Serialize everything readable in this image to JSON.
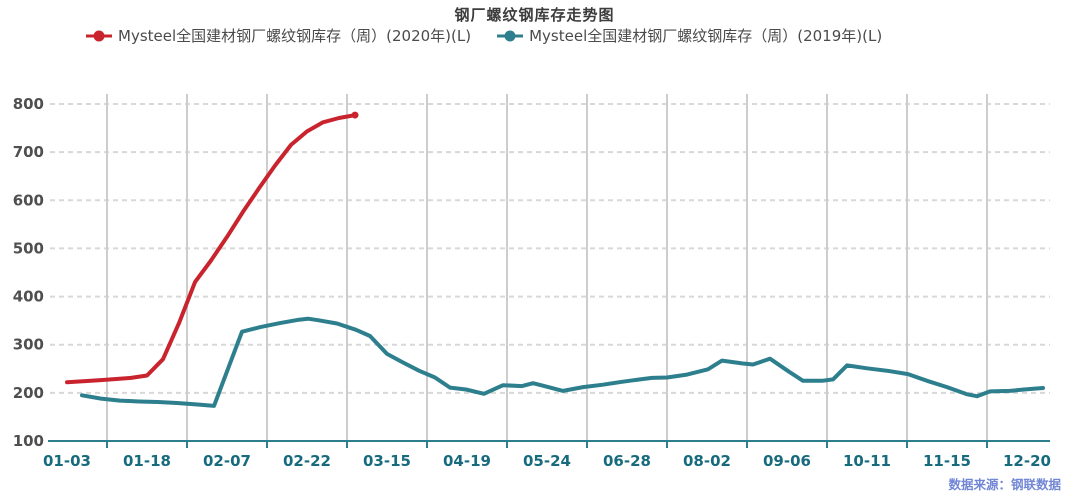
{
  "title": "钢厂螺纹钢库存走势图",
  "source_note": "数据来源：钢联数据",
  "colors": {
    "series_2020": "#c9242e",
    "series_2019": "#2e7f8e",
    "axis_line": "#2e7f8e",
    "x_label": "#176b7d",
    "y_label": "#4f4f4f",
    "grid_dashed": "#d8d8d8",
    "grid_solid": "#cdcdcd",
    "title_text": "#3c3c3c",
    "source_text": "#7287d5"
  },
  "chart_data": {
    "type": "line",
    "title": "钢厂螺纹钢库存走势图",
    "xlabel": "",
    "ylabel": "",
    "ylim": [
      100,
      800
    ],
    "y_ticks": [
      100,
      200,
      300,
      400,
      500,
      600,
      700,
      800
    ],
    "x_tick_labels": [
      "01-03",
      "01-18",
      "02-07",
      "02-22",
      "03-15",
      "04-19",
      "05-24",
      "06-28",
      "08-02",
      "09-06",
      "10-11",
      "11-15",
      "12-20"
    ],
    "grid": "on",
    "legend_position": "top",
    "series": [
      {
        "name": "Mysteel全国建材钢厂螺纹钢库存（周）(2020年)(L)",
        "color": "#c9242e",
        "end_marker": true,
        "points": [
          [
            67,
            222
          ],
          [
            99,
            226
          ],
          [
            131,
            231
          ],
          [
            147,
            236
          ],
          [
            163,
            270
          ],
          [
            179,
            345
          ],
          [
            195,
            430
          ],
          [
            211,
            475
          ],
          [
            227,
            524
          ],
          [
            243,
            576
          ],
          [
            259,
            625
          ],
          [
            275,
            672
          ],
          [
            291,
            715
          ],
          [
            307,
            743
          ],
          [
            323,
            762
          ],
          [
            339,
            771
          ],
          [
            355,
            777
          ]
        ]
      },
      {
        "name": "Mysteel全国建材钢厂螺纹钢库存（周）(2019年)(L)",
        "color": "#2e7f8e",
        "end_marker": false,
        "points": [
          [
            82,
            195
          ],
          [
            101,
            188
          ],
          [
            120,
            184
          ],
          [
            139,
            182
          ],
          [
            158,
            181
          ],
          [
            177,
            179
          ],
          [
            196,
            176
          ],
          [
            214,
            173
          ],
          [
            242,
            327
          ],
          [
            261,
            337
          ],
          [
            280,
            345
          ],
          [
            299,
            352
          ],
          [
            308,
            354
          ],
          [
            318,
            351
          ],
          [
            337,
            344
          ],
          [
            356,
            331
          ],
          [
            370,
            318
          ],
          [
            387,
            281
          ],
          [
            403,
            263
          ],
          [
            419,
            246
          ],
          [
            435,
            232
          ],
          [
            450,
            211
          ],
          [
            466,
            207
          ],
          [
            484,
            198
          ],
          [
            503,
            216
          ],
          [
            522,
            214
          ],
          [
            533,
            220
          ],
          [
            541,
            216
          ],
          [
            563,
            204
          ],
          [
            583,
            212
          ],
          [
            603,
            217
          ],
          [
            622,
            223
          ],
          [
            633,
            226
          ],
          [
            652,
            231
          ],
          [
            667,
            232
          ],
          [
            687,
            238
          ],
          [
            708,
            249
          ],
          [
            722,
            267
          ],
          [
            743,
            261
          ],
          [
            753,
            259
          ],
          [
            770,
            271
          ],
          [
            789,
            244
          ],
          [
            803,
            225
          ],
          [
            822,
            225
          ],
          [
            833,
            228
          ],
          [
            847,
            257
          ],
          [
            867,
            251
          ],
          [
            890,
            245
          ],
          [
            908,
            239
          ],
          [
            927,
            225
          ],
          [
            947,
            212
          ],
          [
            967,
            197
          ],
          [
            977,
            193
          ],
          [
            990,
            203
          ],
          [
            1010,
            204
          ],
          [
            1024,
            207
          ],
          [
            1043,
            210
          ]
        ]
      }
    ]
  }
}
